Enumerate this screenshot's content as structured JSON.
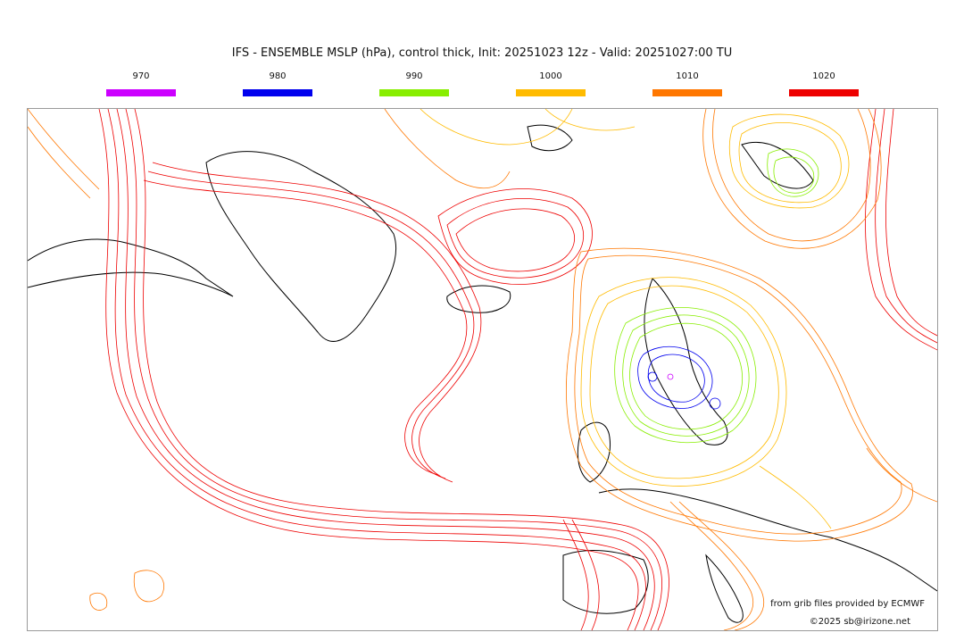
{
  "title": "IFS - ENSEMBLE MSLP (hPa), control thick, Init: 20251023 12z - Valid: 20251027:00 TU",
  "legend": [
    {
      "label": "970",
      "color": "#cc00ff"
    },
    {
      "label": "980",
      "color": "#0000ee"
    },
    {
      "label": "990",
      "color": "#88ee00"
    },
    {
      "label": "1000",
      "color": "#ffbb00"
    },
    {
      "label": "1010",
      "color": "#ff7700"
    },
    {
      "label": "1020",
      "color": "#ee0000"
    }
  ],
  "credits": {
    "source": "from grib files provided by ECMWF",
    "copyright": "©2025 sb@irizone.net"
  }
}
